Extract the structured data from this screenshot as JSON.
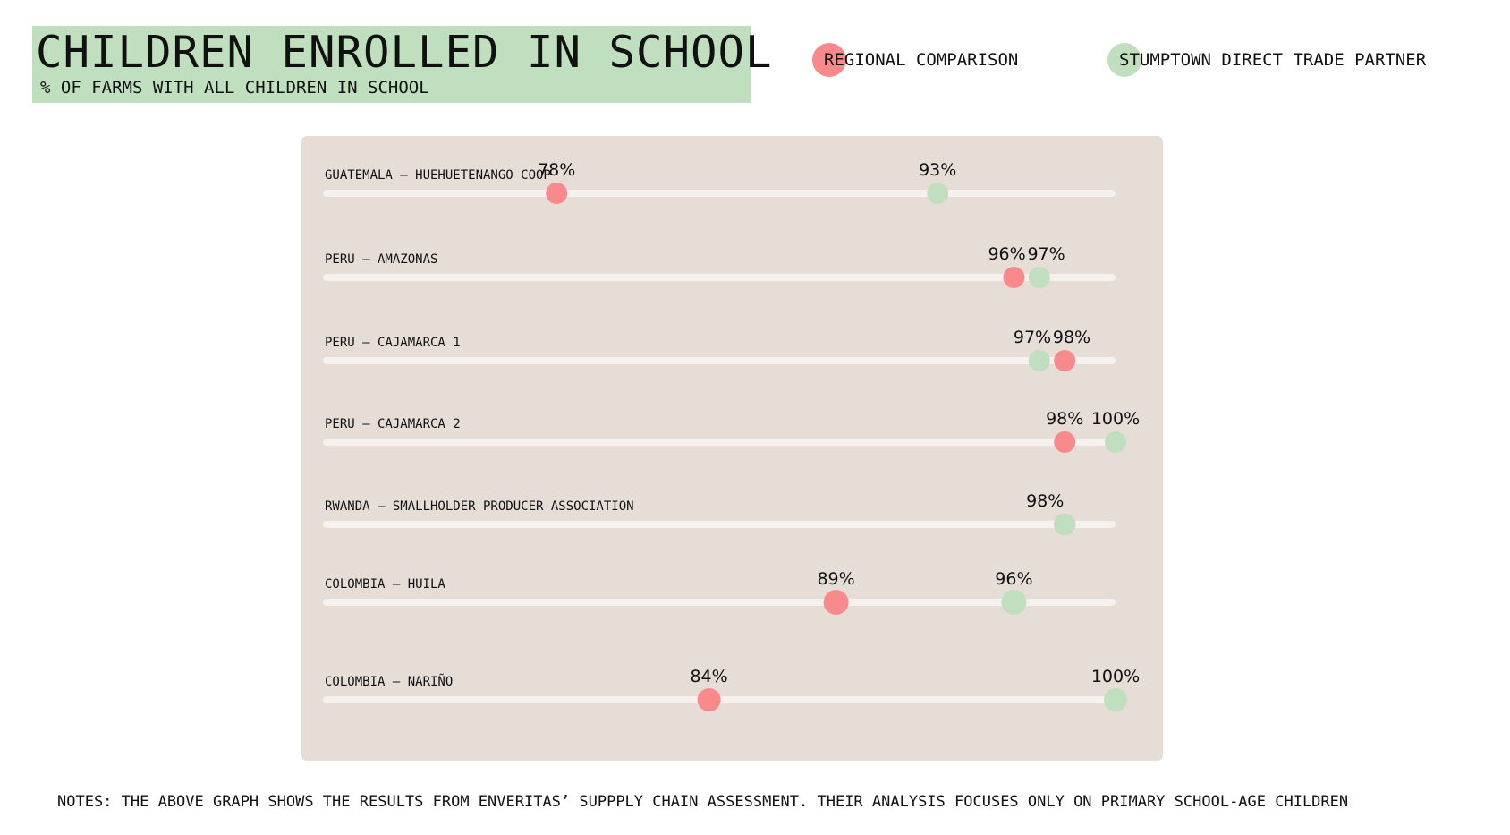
{
  "header": {
    "title": "CHILDREN ENROLLED IN SCHOOL",
    "subtitle": "% OF FARMS WITH ALL CHILDREN IN SCHOOL"
  },
  "legend": {
    "regional": "REGIONAL COMPARISON",
    "partner": "STUMPTOWN DIRECT TRADE PARTNER"
  },
  "colors": {
    "regional": "#f98a8c",
    "partner": "#bfdfbf",
    "track": "#f4f1ee",
    "panel": "#e5ddd6"
  },
  "chart_data": {
    "type": "dot",
    "xlim": [
      0,
      100
    ],
    "categories": [
      "GUATEMALA – HUEHUETENANGO COOP",
      "PERU – AMAZONAS",
      "PERU – CAJAMARCA 1",
      "PERU – CAJAMARCA 2",
      "RWANDA – SMALLHOLDER PRODUCER ASSOCIATION",
      "COLOMBIA – HUILA",
      "COLOMBIA – NARIÑO"
    ],
    "series": [
      {
        "name": "REGIONAL COMPARISON",
        "values": [
          78,
          96,
          98,
          98,
          98,
          89,
          84
        ]
      },
      {
        "name": "STUMPTOWN DIRECT TRADE PARTNER",
        "values": [
          93,
          97,
          97,
          100,
          98,
          96,
          100
        ]
      }
    ],
    "point_labels": [
      [
        "78%",
        "93%"
      ],
      [
        "96%",
        "97%"
      ],
      [
        "98%",
        "97%"
      ],
      [
        "98%",
        "100%"
      ],
      [
        "98%",
        ""
      ],
      [
        "89%",
        "96%"
      ],
      [
        "84%",
        "100%"
      ]
    ]
  },
  "notes": "NOTES: THE ABOVE GRAPH SHOWS THE RESULTS FROM ENVERITAS’ SUPPPLY CHAIN ASSESSMENT. THEIR ANALYSIS FOCUSES ONLY ON PRIMARY SCHOOL-AGE CHILDREN"
}
